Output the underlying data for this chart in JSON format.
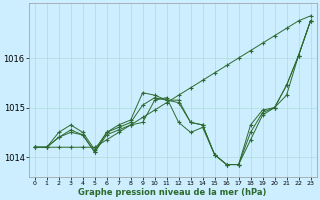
{
  "xlabel": "Graphe pression niveau de la mer (hPa)",
  "bg_color": "#cceeff",
  "grid_color": "#aadddd",
  "line_color": "#2d6a2d",
  "marker": "+",
  "x": [
    0,
    1,
    2,
    3,
    4,
    5,
    6,
    7,
    8,
    9,
    10,
    11,
    12,
    13,
    14,
    15,
    16,
    17,
    18,
    19,
    20,
    21,
    22,
    23
  ],
  "series": [
    [
      1014.2,
      1014.2,
      1014.4,
      1014.5,
      1014.45,
      1014.1,
      1014.45,
      1014.55,
      1014.65,
      1014.7,
      1015.15,
      1015.2,
      1014.7,
      1014.5,
      1014.6,
      1014.05,
      1013.85,
      1013.85,
      1014.35,
      1014.85,
      1015.0,
      1015.25,
      1016.05,
      1016.75
    ],
    [
      1014.2,
      1014.2,
      1014.4,
      1014.55,
      1014.45,
      1014.1,
      1014.5,
      1014.6,
      1014.7,
      1015.05,
      1015.2,
      1015.15,
      1015.1,
      1014.7,
      1014.65,
      1014.05,
      1013.85,
      1013.85,
      1014.5,
      1014.9,
      1015.0,
      1015.45,
      1016.05,
      1016.75
    ],
    [
      1014.2,
      1014.2,
      1014.5,
      1014.65,
      1014.5,
      1014.15,
      1014.5,
      1014.65,
      1014.75,
      1015.3,
      1015.25,
      1015.15,
      1015.15,
      1014.7,
      1014.65,
      1014.05,
      1013.85,
      1013.85,
      1014.65,
      1014.95,
      1015.0,
      1015.45,
      1016.05,
      1016.75
    ],
    [
      1014.2,
      1014.2,
      1014.2,
      1014.2,
      1014.2,
      1014.2,
      1014.35,
      1014.5,
      1014.65,
      1014.8,
      1014.95,
      1015.1,
      1015.25,
      1015.4,
      1015.55,
      1015.7,
      1015.85,
      1016.0,
      1016.15,
      1016.3,
      1016.45,
      1016.6,
      1016.75,
      1016.85
    ]
  ],
  "ylim": [
    1013.6,
    1017.1
  ],
  "yticks": [
    1014,
    1015,
    1016
  ],
  "xticks": [
    0,
    1,
    2,
    3,
    4,
    5,
    6,
    7,
    8,
    9,
    10,
    11,
    12,
    13,
    14,
    15,
    16,
    17,
    18,
    19,
    20,
    21,
    22,
    23
  ],
  "figsize": [
    3.2,
    2.0
  ],
  "dpi": 100
}
